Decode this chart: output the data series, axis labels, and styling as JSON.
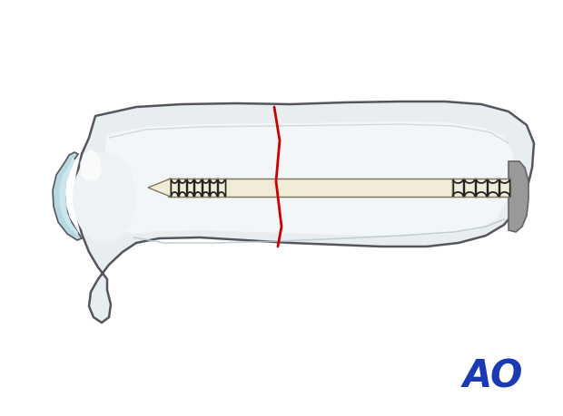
{
  "background_color": "#ffffff",
  "bone_outer_color": "#e8edf0",
  "bone_edge_color": "#555560",
  "bone_inner_color": "#eef2f4",
  "canal_color": "#f0f4f6",
  "articular_outer_color": "#b8d8e0",
  "articular_inner_color": "#cce6ee",
  "screw_body_color": "#f0ecd8",
  "screw_edge_color": "#807860",
  "screw_thread_color": "#222222",
  "fracture_color": "#cc0000",
  "ao_color": "#1a3ab5",
  "gray_cap_color": "#999999",
  "gray_cap_edge": "#666666",
  "shadow_color": "#d0d8dc",
  "ao_text": "AO",
  "figsize": [
    6.2,
    4.59
  ],
  "dpi": 100
}
